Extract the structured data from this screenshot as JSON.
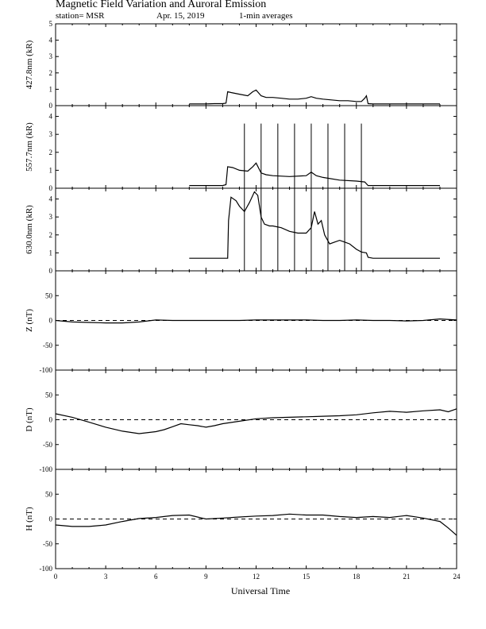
{
  "header": {
    "title": "Magnetic Field Variation and Auroral Emission",
    "station": "station= MSR",
    "date": "Apr. 15, 2019",
    "averaging": "1-min averages"
  },
  "chart_data": [
    {
      "type": "line",
      "ylabel": "427.8nm (kR)",
      "ylim": [
        0,
        5
      ],
      "yticks": [
        0,
        1,
        2,
        3,
        4,
        5
      ],
      "xlim": [
        0,
        24
      ],
      "series": [
        {
          "x": [
            8.0,
            8.5,
            9.0,
            9.5,
            10.0,
            10.2,
            10.3,
            10.5,
            11.0,
            11.5,
            11.8,
            12.0,
            12.3,
            12.6,
            13.0,
            13.5,
            14.0,
            14.5,
            15.0,
            15.3,
            15.6,
            16.0,
            16.5,
            17.0,
            17.5,
            18.0,
            18.3,
            18.5,
            18.6,
            18.7,
            19.0,
            20.0,
            21.0,
            22.0,
            23.0
          ],
          "y": [
            0.1,
            0.1,
            0.1,
            0.12,
            0.12,
            0.15,
            0.85,
            0.8,
            0.7,
            0.6,
            0.85,
            0.95,
            0.6,
            0.5,
            0.5,
            0.45,
            0.4,
            0.4,
            0.45,
            0.55,
            0.45,
            0.4,
            0.35,
            0.3,
            0.3,
            0.25,
            0.25,
            0.45,
            0.6,
            0.12,
            0.1,
            0.1,
            0.1,
            0.1,
            0.1
          ]
        }
      ]
    },
    {
      "type": "line",
      "ylabel": "557.7nm (kR)",
      "ylim": [
        0,
        4.6
      ],
      "yticks": [
        0,
        1,
        2,
        3,
        4
      ],
      "xlim": [
        0,
        24
      ],
      "series": [
        {
          "x": [
            8.0,
            9.0,
            10.0,
            10.2,
            10.3,
            10.6,
            11.0,
            11.5,
            11.8,
            12.0,
            12.3,
            12.6,
            13.0,
            14.0,
            15.0,
            15.3,
            15.6,
            16.0,
            17.0,
            18.0,
            18.5,
            18.7,
            19.0,
            20.0,
            21.0,
            22.0,
            23.0
          ],
          "y": [
            0.15,
            0.15,
            0.15,
            0.2,
            1.2,
            1.15,
            1.0,
            0.95,
            1.2,
            1.4,
            0.85,
            0.75,
            0.7,
            0.65,
            0.7,
            0.9,
            0.7,
            0.6,
            0.45,
            0.4,
            0.35,
            0.15,
            0.15,
            0.15,
            0.15,
            0.15,
            0.15
          ]
        }
      ],
      "spikes": {
        "x": [
          11.3,
          12.3,
          13.3,
          14.3,
          15.3,
          16.3,
          17.3,
          18.3
        ],
        "y": 3.6
      }
    },
    {
      "type": "line",
      "ylabel": "630.0nm (kR)",
      "ylim": [
        0,
        4.6
      ],
      "yticks": [
        0,
        1,
        2,
        3,
        4
      ],
      "xlim": [
        0,
        24
      ],
      "series": [
        {
          "x": [
            8.0,
            9.0,
            10.0,
            10.3,
            10.35,
            10.5,
            10.8,
            11.0,
            11.3,
            11.6,
            11.9,
            12.1,
            12.3,
            12.5,
            12.8,
            13.0,
            13.5,
            14.0,
            14.5,
            15.0,
            15.3,
            15.5,
            15.7,
            15.9,
            16.1,
            16.4,
            16.7,
            17.0,
            17.3,
            17.6,
            18.0,
            18.3,
            18.6,
            18.7,
            19.0,
            20.0,
            21.0,
            22.0,
            23.0
          ],
          "y": [
            0.7,
            0.7,
            0.7,
            0.7,
            2.8,
            4.1,
            3.9,
            3.6,
            3.3,
            3.8,
            4.4,
            4.2,
            3.0,
            2.6,
            2.5,
            2.5,
            2.4,
            2.2,
            2.1,
            2.1,
            2.4,
            3.3,
            2.6,
            2.8,
            2.0,
            1.5,
            1.6,
            1.7,
            1.6,
            1.5,
            1.2,
            1.05,
            1.0,
            0.75,
            0.7,
            0.7,
            0.7,
            0.7,
            0.7
          ]
        }
      ],
      "spikes": {
        "x": [
          11.3,
          12.3,
          13.3,
          14.3,
          15.3,
          16.3,
          17.3,
          18.3
        ],
        "y": 4.6
      }
    },
    {
      "type": "line",
      "ylabel": "Z (nT)",
      "ylim": [
        -100,
        100
      ],
      "yticks": [
        -100,
        -50,
        0,
        50
      ],
      "xlim": [
        0,
        24
      ],
      "baseline": 0,
      "series": [
        {
          "x": [
            0,
            1,
            2,
            3,
            4,
            5,
            6,
            7,
            8,
            9,
            10,
            11,
            12,
            13,
            14,
            15,
            16,
            17,
            18,
            19,
            20,
            21,
            22,
            23,
            24
          ],
          "y": [
            0,
            -3,
            -4,
            -5,
            -5,
            -3,
            1,
            0,
            0,
            0,
            0,
            0,
            1,
            1,
            1,
            1,
            0,
            0,
            1,
            0,
            0,
            -1,
            0,
            3,
            1
          ]
        }
      ]
    },
    {
      "type": "line",
      "ylabel": "D (nT)",
      "ylim": [
        -100,
        100
      ],
      "yticks": [
        -100,
        -50,
        0,
        50
      ],
      "xlim": [
        0,
        24
      ],
      "baseline": 0,
      "series": [
        {
          "x": [
            0,
            1,
            2,
            3,
            4,
            5,
            6,
            6.5,
            7,
            7.5,
            8,
            8.5,
            9,
            9.5,
            10,
            11,
            12,
            13,
            14,
            15,
            16,
            17,
            18,
            19,
            20,
            21,
            22,
            23,
            23.5,
            24
          ],
          "y": [
            12,
            5,
            -5,
            -15,
            -23,
            -28,
            -24,
            -20,
            -14,
            -8,
            -10,
            -12,
            -15,
            -12,
            -8,
            -3,
            2,
            4,
            5,
            6,
            7,
            8,
            10,
            14,
            17,
            15,
            18,
            20,
            16,
            22
          ]
        }
      ]
    },
    {
      "type": "line",
      "ylabel": "H (nT)",
      "ylim": [
        -100,
        100
      ],
      "yticks": [
        -100,
        -50,
        0,
        50
      ],
      "xlim": [
        0,
        24
      ],
      "xticks": [
        0,
        3,
        6,
        9,
        12,
        15,
        18,
        21,
        24
      ],
      "xlabel": "Universal Time",
      "baseline": 0,
      "series": [
        {
          "x": [
            0,
            1,
            2,
            3,
            4,
            5,
            6,
            7,
            8,
            9,
            10,
            11,
            12,
            13,
            14,
            15,
            16,
            17,
            18,
            19,
            20,
            21,
            22,
            23,
            23.5,
            24
          ],
          "y": [
            -12,
            -15,
            -15,
            -12,
            -5,
            1,
            3,
            7,
            8,
            0,
            2,
            4,
            6,
            7,
            10,
            8,
            8,
            5,
            3,
            5,
            3,
            7,
            2,
            -5,
            -18,
            -33
          ]
        }
      ]
    }
  ]
}
